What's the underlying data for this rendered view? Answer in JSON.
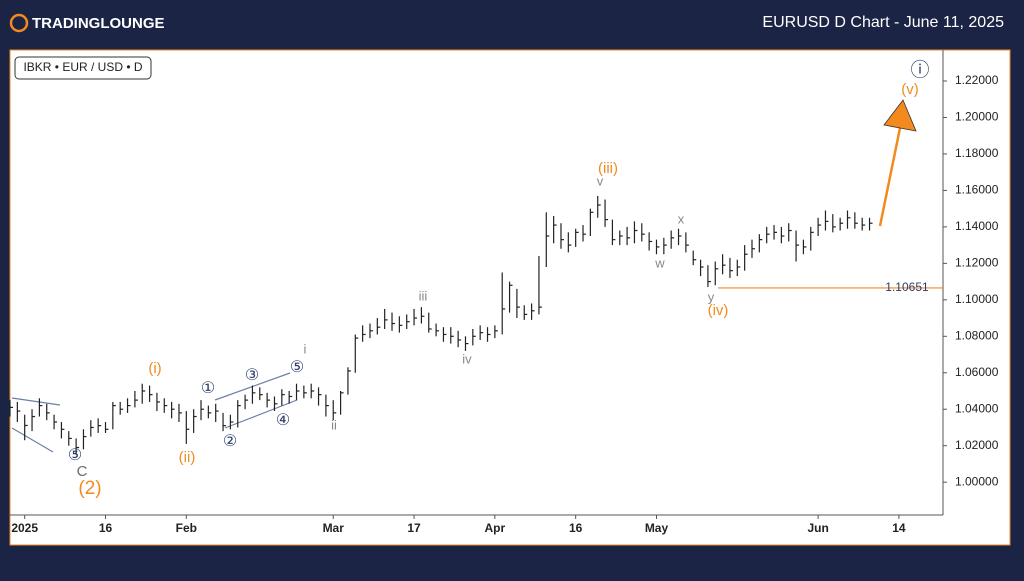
{
  "header": {
    "logo": "TRADINGLOUNGE",
    "title": "EURUSD D Chart - June 11, 2025"
  },
  "chart_data": {
    "type": "ohlc",
    "symbol": "IBKR • EUR / USD • D",
    "bar_color": "#222222",
    "x": [
      -2,
      -1,
      0,
      1,
      2,
      3,
      4,
      5,
      6,
      7,
      8,
      9,
      10,
      11,
      12,
      13,
      14,
      15,
      16,
      17,
      18,
      19,
      20,
      21,
      22,
      23,
      24,
      25,
      26,
      27,
      28,
      29,
      30,
      31,
      32,
      33,
      34,
      35,
      36,
      37,
      38,
      39,
      40,
      41,
      42,
      43,
      44,
      45,
      46,
      47,
      48,
      49,
      50,
      51,
      52,
      53,
      54,
      55,
      56,
      57,
      58,
      59,
      60,
      61,
      62,
      63,
      64,
      65,
      66,
      67,
      68,
      69,
      70,
      71,
      72,
      73,
      74,
      75,
      76,
      77,
      78,
      79,
      80,
      81,
      82,
      83,
      84,
      85,
      86,
      87,
      88,
      89,
      90,
      91,
      92,
      93,
      94,
      95,
      96,
      97,
      98,
      99,
      100,
      101,
      102,
      103,
      104,
      105,
      106,
      107,
      108,
      109,
      110,
      111,
      112,
      113,
      114,
      115
    ],
    "high": [
      1.045,
      1.044,
      1.037,
      1.04,
      1.046,
      1.043,
      1.037,
      1.033,
      1.028,
      1.024,
      1.029,
      1.034,
      1.035,
      1.033,
      1.044,
      1.044,
      1.046,
      1.05,
      1.054,
      1.053,
      1.049,
      1.046,
      1.044,
      1.043,
      1.039,
      1.04,
      1.045,
      1.042,
      1.043,
      1.038,
      1.037,
      1.045,
      1.048,
      1.053,
      1.052,
      1.049,
      1.047,
      1.051,
      1.05,
      1.054,
      1.053,
      1.054,
      1.052,
      1.048,
      1.045,
      1.05,
      1.063,
      1.081,
      1.086,
      1.087,
      1.09,
      1.095,
      1.093,
      1.091,
      1.092,
      1.095,
      1.096,
      1.093,
      1.087,
      1.085,
      1.085,
      1.083,
      1.08,
      1.084,
      1.086,
      1.085,
      1.086,
      1.115,
      1.11,
      1.106,
      1.097,
      1.098,
      1.124,
      1.148,
      1.146,
      1.142,
      1.137,
      1.139,
      1.141,
      1.15,
      1.157,
      1.155,
      1.144,
      1.138,
      1.14,
      1.143,
      1.142,
      1.137,
      1.133,
      1.134,
      1.138,
      1.139,
      1.137,
      1.127,
      1.122,
      1.119,
      1.121,
      1.125,
      1.123,
      1.122,
      1.13,
      1.133,
      1.136,
      1.14,
      1.141,
      1.14,
      1.142,
      1.138,
      1.133,
      1.14,
      1.145,
      1.149,
      1.147,
      1.145,
      1.149,
      1.148,
      1.145,
      1.145
    ],
    "low": [
      1.036,
      1.033,
      1.023,
      1.028,
      1.036,
      1.034,
      1.029,
      1.024,
      1.02,
      1.015,
      1.018,
      1.025,
      1.027,
      1.027,
      1.029,
      1.037,
      1.038,
      1.041,
      1.043,
      1.044,
      1.039,
      1.038,
      1.035,
      1.033,
      1.021,
      1.027,
      1.034,
      1.035,
      1.033,
      1.028,
      1.029,
      1.03,
      1.04,
      1.043,
      1.045,
      1.041,
      1.039,
      1.042,
      1.043,
      1.045,
      1.046,
      1.046,
      1.042,
      1.036,
      1.034,
      1.037,
      1.048,
      1.06,
      1.077,
      1.079,
      1.081,
      1.084,
      1.083,
      1.082,
      1.084,
      1.086,
      1.087,
      1.082,
      1.08,
      1.077,
      1.076,
      1.074,
      1.072,
      1.075,
      1.078,
      1.077,
      1.079,
      1.081,
      1.093,
      1.09,
      1.089,
      1.089,
      1.092,
      1.118,
      1.131,
      1.128,
      1.126,
      1.129,
      1.132,
      1.135,
      1.145,
      1.14,
      1.13,
      1.13,
      1.13,
      1.131,
      1.132,
      1.127,
      1.125,
      1.125,
      1.128,
      1.13,
      1.126,
      1.119,
      1.113,
      1.107,
      1.108,
      1.114,
      1.112,
      1.113,
      1.116,
      1.123,
      1.126,
      1.131,
      1.133,
      1.131,
      1.132,
      1.121,
      1.125,
      1.127,
      1.135,
      1.138,
      1.137,
      1.138,
      1.139,
      1.139,
      1.138,
      1.138
    ],
    "close": [
      1.041,
      1.039,
      1.0311,
      1.036,
      1.042,
      1.038,
      1.033,
      1.029,
      1.024,
      1.019,
      1.025,
      1.03,
      1.031,
      1.029,
      1.042,
      1.04,
      1.042,
      1.045,
      1.05,
      1.048,
      1.044,
      1.042,
      1.04,
      1.038,
      1.029,
      1.036,
      1.04,
      1.038,
      1.039,
      1.031,
      1.033,
      1.042,
      1.045,
      1.049,
      1.048,
      1.045,
      1.043,
      1.048,
      1.047,
      1.05,
      1.049,
      1.05,
      1.048,
      1.042,
      1.038,
      1.049,
      1.061,
      1.079,
      1.081,
      1.083,
      1.085,
      1.089,
      1.087,
      1.086,
      1.088,
      1.09,
      1.091,
      1.084,
      1.083,
      1.081,
      1.08,
      1.078,
      1.076,
      1.08,
      1.082,
      1.081,
      1.083,
      1.095,
      1.108,
      1.096,
      1.092,
      1.094,
      1.096,
      1.135,
      1.141,
      1.133,
      1.13,
      1.137,
      1.136,
      1.148,
      1.152,
      1.144,
      1.133,
      1.135,
      1.134,
      1.138,
      1.136,
      1.132,
      1.129,
      1.13,
      1.134,
      1.135,
      1.13,
      1.122,
      1.118,
      1.11,
      1.117,
      1.119,
      1.116,
      1.118,
      1.125,
      1.128,
      1.133,
      1.136,
      1.137,
      1.135,
      1.138,
      1.13,
      1.129,
      1.137,
      1.141,
      1.143,
      1.14,
      1.142,
      1.145,
      1.142,
      1.141,
      1.142
    ],
    "xlim": [
      -2,
      125
    ],
    "xticks": [
      {
        "value": 0,
        "label": "2025"
      },
      {
        "value": 11,
        "label": "16"
      },
      {
        "value": 22,
        "label": "Feb"
      },
      {
        "value": 42,
        "label": "Mar"
      },
      {
        "value": 53,
        "label": "17"
      },
      {
        "value": 64,
        "label": "Apr"
      },
      {
        "value": 75,
        "label": "16"
      },
      {
        "value": 86,
        "label": "May"
      },
      {
        "value": 108,
        "label": "Jun"
      },
      {
        "value": 119,
        "label": "14"
      }
    ],
    "ylim": [
      0.982,
      1.237
    ],
    "yticks": [
      {
        "value": 1.0,
        "label": "1.00000"
      },
      {
        "value": 1.02,
        "label": "1.02000"
      },
      {
        "value": 1.04,
        "label": "1.04000"
      },
      {
        "value": 1.06,
        "label": "1.06000"
      },
      {
        "value": 1.08,
        "label": "1.08000"
      },
      {
        "value": 1.1,
        "label": "1.10000"
      },
      {
        "value": 1.12,
        "label": "1.12000"
      },
      {
        "value": 1.14,
        "label": "1.14000"
      },
      {
        "value": 1.16,
        "label": "1.16000"
      },
      {
        "value": 1.18,
        "label": "1.18000"
      },
      {
        "value": 1.2,
        "label": "1.20000"
      },
      {
        "value": 1.22,
        "label": "1.22000"
      }
    ],
    "level": {
      "value": 1.10651,
      "color": "#f28a1e"
    },
    "wave_labels": [
      {
        "text": "(i)",
        "color": "#f28a1e"
      },
      {
        "text": "(ii)",
        "color": "#f28a1e"
      },
      {
        "text": "(iii)",
        "color": "#f28a1e"
      },
      {
        "text": "(iv)",
        "color": "#f28a1e"
      },
      {
        "text": "(v)",
        "color": "#f28a1e"
      },
      {
        "text": "(2)",
        "color": "#f28a1e"
      },
      {
        "text": "C",
        "color": "#6b6b6b"
      },
      {
        "text": "⑤",
        "color": "#2b3d6b"
      },
      {
        "text": "①",
        "color": "#2b3d6b"
      },
      {
        "text": "②",
        "color": "#2b3d6b"
      },
      {
        "text": "③",
        "color": "#2b3d6b"
      },
      {
        "text": "④",
        "color": "#2b3d6b"
      },
      {
        "text": "⑤",
        "color": "#2b3d6b"
      },
      {
        "text": "i",
        "color": "#888888"
      },
      {
        "text": "ii",
        "color": "#888888"
      },
      {
        "text": "iii",
        "color": "#888888"
      },
      {
        "text": "iv",
        "color": "#888888"
      },
      {
        "text": "v",
        "color": "#888888"
      },
      {
        "text": "w",
        "color": "#888888"
      },
      {
        "text": "x",
        "color": "#888888"
      },
      {
        "text": "y",
        "color": "#888888"
      },
      {
        "text": "ⓘ",
        "color": "#2b3d6b"
      }
    ]
  }
}
